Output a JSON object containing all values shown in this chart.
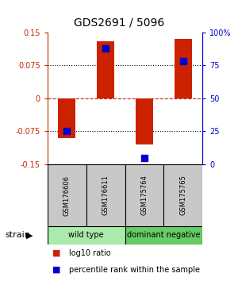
{
  "title": "GDS2691 / 5096",
  "samples": [
    "GSM176606",
    "GSM176611",
    "GSM175764",
    "GSM175765"
  ],
  "log10_ratio": [
    -0.09,
    0.13,
    -0.105,
    0.135
  ],
  "percentile_rank": [
    25,
    88,
    5,
    78
  ],
  "ylim_left": [
    -0.15,
    0.15
  ],
  "ylim_right": [
    0,
    100
  ],
  "yticks_left": [
    -0.15,
    -0.075,
    0,
    0.075,
    0.15
  ],
  "yticks_right": [
    0,
    25,
    50,
    75,
    100
  ],
  "ytick_labels_left": [
    "-0.15",
    "-0.075",
    "0",
    "0.075",
    "0.15"
  ],
  "ytick_labels_right": [
    "0",
    "25",
    "50",
    "75",
    "100%"
  ],
  "groups": [
    {
      "label": "wild type",
      "samples": [
        0,
        1
      ],
      "color": "#aaeaaa"
    },
    {
      "label": "dominant negative",
      "samples": [
        2,
        3
      ],
      "color": "#66cc66"
    }
  ],
  "group_label": "strain",
  "bar_color": "#cc2200",
  "dot_color": "#0000cc",
  "bar_width": 0.45,
  "dot_size": 40,
  "background_color": "#ffffff",
  "title_color": "#000000",
  "left_axis_color": "#cc2200",
  "right_axis_color": "#0000cc",
  "zero_line_color": "#cc2200",
  "grid_color": "#000000",
  "sample_box_color": "#c8c8c8",
  "legend_items": [
    "log10 ratio",
    "percentile rank within the sample"
  ],
  "title_fontsize": 10,
  "tick_fontsize": 7,
  "sample_fontsize": 6,
  "group_fontsize": 7,
  "legend_fontsize": 7
}
